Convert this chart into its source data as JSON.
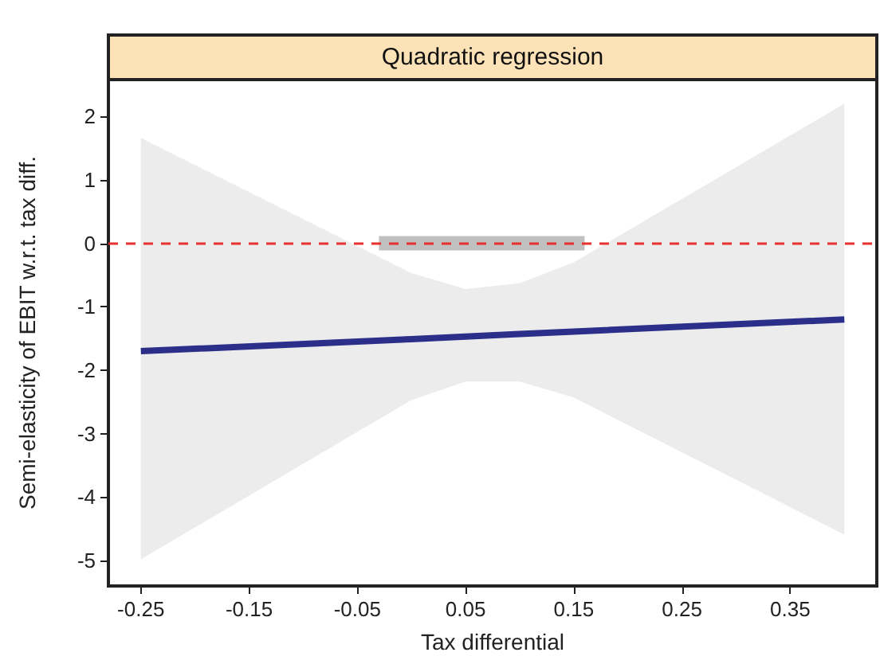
{
  "chart_data": {
    "type": "line",
    "title": "Quadratic regression",
    "xlabel": "Tax differential",
    "ylabel": "Semi-elasticity of EBIT w.r.t. tax diff.",
    "xlim": [
      -0.28,
      0.43
    ],
    "ylim": [
      -5.4,
      2.58
    ],
    "xticks": [
      -0.25,
      -0.15,
      -0.05,
      0.05,
      0.15,
      0.25,
      0.35
    ],
    "yticks": [
      -5,
      -4,
      -3,
      -2,
      -1,
      0,
      1,
      2
    ],
    "grid": false,
    "series": [
      {
        "color": "#c0c0c0",
        "x": [
          -0.03,
          0.16
        ],
        "values": [
          0,
          0
        ]
      },
      {
        "color": "#2b2f8a",
        "x": [
          -0.25,
          0,
          0.05,
          0.1,
          0.15,
          0.4
        ],
        "values": [
          -1.7,
          -1.51,
          -1.47,
          -1.43,
          -1.39,
          -1.2
        ],
        "lower": [
          -4.98,
          -2.47,
          -2.18,
          -2.18,
          -2.43,
          -4.59
        ],
        "upper": [
          1.66,
          -0.47,
          -0.72,
          -0.63,
          -0.3,
          2.2
        ]
      }
    ],
    "ref_lines": [
      {
        "axis": "y",
        "value": 0,
        "color": "#e8312f",
        "line_style": "dashed"
      }
    ]
  }
}
